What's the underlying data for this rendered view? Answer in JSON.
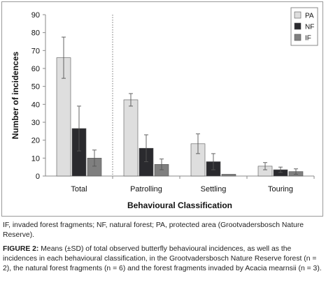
{
  "chart_data": {
    "type": "bar",
    "xlabel": "Behavioural Classification",
    "ylabel": "Number of incidences",
    "ylim": [
      0,
      90
    ],
    "yticks": [
      0,
      10,
      20,
      30,
      40,
      50,
      60,
      70,
      80,
      90
    ],
    "categories": [
      "Total",
      "Patrolling",
      "Settling",
      "Touring"
    ],
    "series": [
      {
        "name": "PA",
        "color": "#dedede",
        "values": [
          66,
          42.5,
          18,
          5.5
        ],
        "sd": [
          11.5,
          3.5,
          5.5,
          2.0
        ]
      },
      {
        "name": "NF",
        "color": "#2a2a2e",
        "values": [
          26.5,
          15.5,
          8,
          3.5
        ],
        "sd": [
          12.5,
          7.5,
          4.5,
          1.5
        ]
      },
      {
        "name": "IF",
        "color": "#7f7f7f",
        "values": [
          10,
          6.5,
          1,
          2.5
        ],
        "sd": [
          4.5,
          3.0,
          0,
          1.5
        ]
      }
    ],
    "legend_position": "top-right",
    "divider_after_category": "Total",
    "error_bars": "±SD"
  },
  "abbrev_text": "IF, invaded forest fragments; NF, natural forest; PA, protected area (Grootvadersbosch Nature Reserve).",
  "figure": {
    "label": "FIGURE 2:",
    "text": " Means (±SD) of total observed butterfly behavioural incidences, as well as the incidences in each behavioural classification, in the Grootvadersbosch Nature Reserve forest (n = 2), the natural forest fragments (n = 6) and the forest fragments invaded by Acacia mearnsii (n = 3)."
  }
}
